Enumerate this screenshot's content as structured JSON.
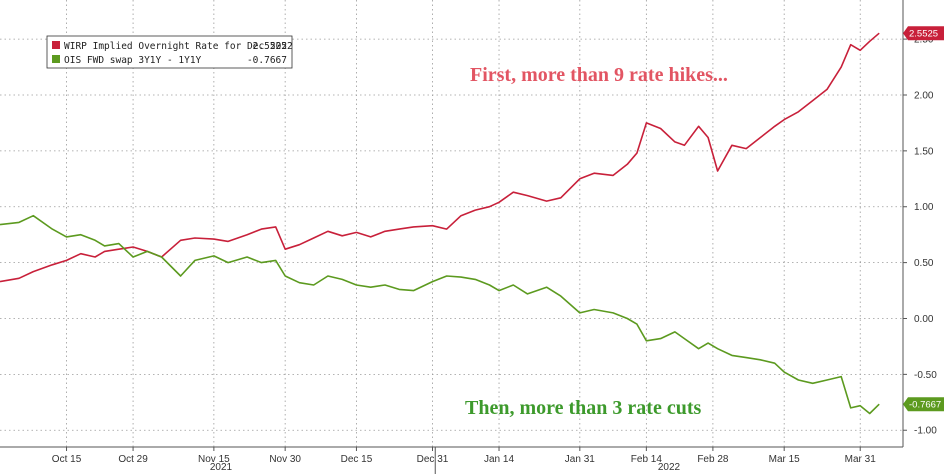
{
  "chart_data": {
    "type": "line",
    "title": "",
    "xlabel": "",
    "ylabel": "",
    "x_ticks": [
      "Oct 15",
      "Oct 29",
      "Nov 15",
      "Nov 30",
      "Dec 15",
      "Dec 31",
      "Jan 14",
      "Jan 31",
      "Feb 14",
      "Feb 28",
      "Mar 15",
      "Mar 31"
    ],
    "x_groups": [
      {
        "label": "2021"
      },
      {
        "label": "2022"
      }
    ],
    "ylim": [
      -1.15,
      2.85
    ],
    "y_ticks": [
      "-1.00",
      "-0.50",
      "0.00",
      "0.50",
      "1.00",
      "1.50",
      "2.00",
      "2.50"
    ],
    "y_tick_values": [
      -1.0,
      -0.5,
      0.0,
      0.5,
      1.0,
      1.5,
      2.0,
      2.5
    ],
    "grid": true,
    "legend_position": "top-left",
    "series": [
      {
        "name": "WIRP Implied Overnight Rate for Dec 2022",
        "last_label": "2.5525",
        "color": "#c8203a",
        "x": [
          "Oct 1",
          "Oct 5",
          "Oct 8",
          "Oct 12",
          "Oct 15",
          "Oct 18",
          "Oct 21",
          "Oct 23",
          "Oct 26",
          "Oct 29",
          "Nov 1",
          "Nov 4",
          "Nov 8",
          "Nov 11",
          "Nov 15",
          "Nov 18",
          "Nov 22",
          "Nov 25",
          "Nov 28",
          "Nov 30",
          "Dec 3",
          "Dec 6",
          "Dec 9",
          "Dec 12",
          "Dec 15",
          "Dec 18",
          "Dec 21",
          "Dec 24",
          "Dec 27",
          "Dec 31",
          "Jan 3",
          "Jan 6",
          "Jan 9",
          "Jan 12",
          "Jan 14",
          "Jan 17",
          "Jan 20",
          "Jan 24",
          "Jan 27",
          "Jan 31",
          "Feb 3",
          "Feb 7",
          "Feb 10",
          "Feb 12",
          "Feb 14",
          "Feb 17",
          "Feb 20",
          "Feb 22",
          "Feb 25",
          "Feb 27",
          "Mar 1",
          "Mar 4",
          "Mar 7",
          "Mar 10",
          "Mar 13",
          "Mar 15",
          "Mar 18",
          "Mar 21",
          "Mar 24",
          "Mar 27",
          "Mar 29",
          "Mar 31",
          "Apr 2",
          "Apr 4"
        ],
        "values": [
          0.33,
          0.36,
          0.42,
          0.48,
          0.52,
          0.58,
          0.55,
          0.6,
          0.62,
          0.64,
          0.6,
          0.55,
          0.7,
          0.72,
          0.71,
          0.69,
          0.75,
          0.8,
          0.82,
          0.62,
          0.66,
          0.72,
          0.78,
          0.74,
          0.77,
          0.73,
          0.78,
          0.8,
          0.82,
          0.83,
          0.8,
          0.92,
          0.97,
          1.0,
          1.04,
          1.13,
          1.1,
          1.05,
          1.08,
          1.25,
          1.3,
          1.28,
          1.38,
          1.48,
          1.75,
          1.7,
          1.58,
          1.55,
          1.72,
          1.62,
          1.32,
          1.55,
          1.52,
          1.62,
          1.72,
          1.78,
          1.85,
          1.95,
          2.05,
          2.25,
          2.45,
          2.4,
          2.48,
          2.5525
        ]
      },
      {
        "name": "OIS FWD swap 3Y1Y - 1Y1Y",
        "last_label": "-0.7667",
        "color": "#5c9a1f",
        "x": [
          "Oct 1",
          "Oct 5",
          "Oct 8",
          "Oct 12",
          "Oct 15",
          "Oct 18",
          "Oct 21",
          "Oct 23",
          "Oct 26",
          "Oct 29",
          "Nov 1",
          "Nov 4",
          "Nov 8",
          "Nov 11",
          "Nov 15",
          "Nov 18",
          "Nov 22",
          "Nov 25",
          "Nov 28",
          "Nov 30",
          "Dec 3",
          "Dec 6",
          "Dec 9",
          "Dec 12",
          "Dec 15",
          "Dec 18",
          "Dec 21",
          "Dec 24",
          "Dec 27",
          "Dec 31",
          "Jan 3",
          "Jan 6",
          "Jan 9",
          "Jan 12",
          "Jan 14",
          "Jan 17",
          "Jan 20",
          "Jan 24",
          "Jan 27",
          "Jan 31",
          "Feb 3",
          "Feb 7",
          "Feb 10",
          "Feb 12",
          "Feb 14",
          "Feb 17",
          "Feb 20",
          "Feb 22",
          "Feb 25",
          "Feb 27",
          "Mar 1",
          "Mar 4",
          "Mar 7",
          "Mar 10",
          "Mar 13",
          "Mar 15",
          "Mar 18",
          "Mar 21",
          "Mar 24",
          "Mar 27",
          "Mar 29",
          "Mar 31",
          "Apr 2",
          "Apr 4"
        ],
        "values": [
          0.84,
          0.86,
          0.92,
          0.8,
          0.73,
          0.75,
          0.7,
          0.65,
          0.67,
          0.55,
          0.6,
          0.55,
          0.38,
          0.52,
          0.56,
          0.5,
          0.55,
          0.5,
          0.52,
          0.38,
          0.32,
          0.3,
          0.38,
          0.35,
          0.3,
          0.28,
          0.3,
          0.26,
          0.25,
          0.33,
          0.38,
          0.37,
          0.35,
          0.3,
          0.25,
          0.3,
          0.22,
          0.28,
          0.2,
          0.05,
          0.08,
          0.05,
          0.0,
          -0.05,
          -0.2,
          -0.18,
          -0.12,
          -0.18,
          -0.27,
          -0.22,
          -0.27,
          -0.33,
          -0.35,
          -0.37,
          -0.4,
          -0.48,
          -0.55,
          -0.58,
          -0.55,
          -0.52,
          -0.8,
          -0.78,
          -0.85,
          -0.7667
        ]
      }
    ],
    "annotations": [
      {
        "text": "First, more than 9 rate hikes...",
        "color": "#e25563"
      },
      {
        "text": "Then, more than 3 rate cuts",
        "color": "#3d9a2c"
      }
    ]
  }
}
